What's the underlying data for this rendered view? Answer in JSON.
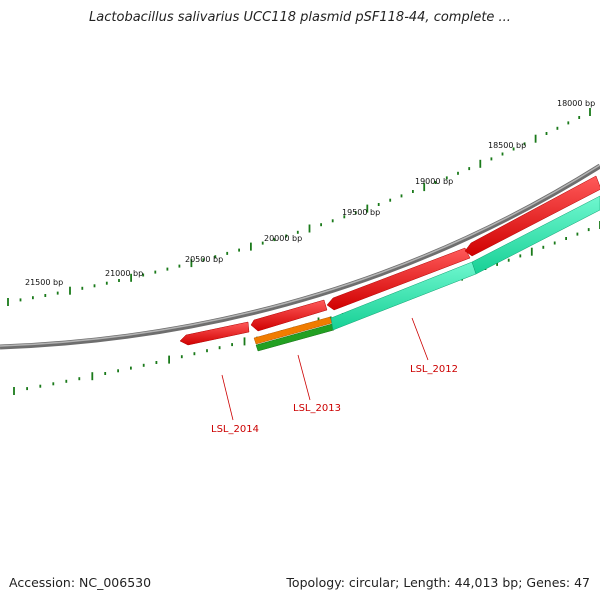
{
  "title": "Lactobacillus salivarius UCC118 plasmid pSF118-44, complete ...",
  "accession": "Accession: NC_006530",
  "topology": "Topology: circular; Length: 44,013 bp; Genes: 47",
  "ticks": [
    {
      "label": "18000 bp",
      "bp": 18000
    },
    {
      "label": "18500 bp",
      "bp": 18500
    },
    {
      "label": "19000 bp",
      "bp": 19000
    },
    {
      "label": "19500 bp",
      "bp": 19500
    },
    {
      "label": "20000 bp",
      "bp": 20000
    },
    {
      "label": "20500 bp",
      "bp": 20500
    },
    {
      "label": "21000 bp",
      "bp": 21000
    },
    {
      "label": "21500 bp",
      "bp": 21500
    }
  ],
  "gene_labels": [
    {
      "id": "LSL_2012",
      "text": "LSL_2012"
    },
    {
      "id": "LSL_2013",
      "text": "LSL_2013"
    },
    {
      "id": "LSL_2014",
      "text": "LSL_2014"
    }
  ],
  "colors": {
    "backbone": "#8a8a8a",
    "cds": "#ee0000",
    "gene_teal": "#22e8a8",
    "gene_orange": "#f07c00",
    "gene_green": "#22a022",
    "ticks": "#1a7a1a",
    "gene_label": "#cc0000"
  }
}
